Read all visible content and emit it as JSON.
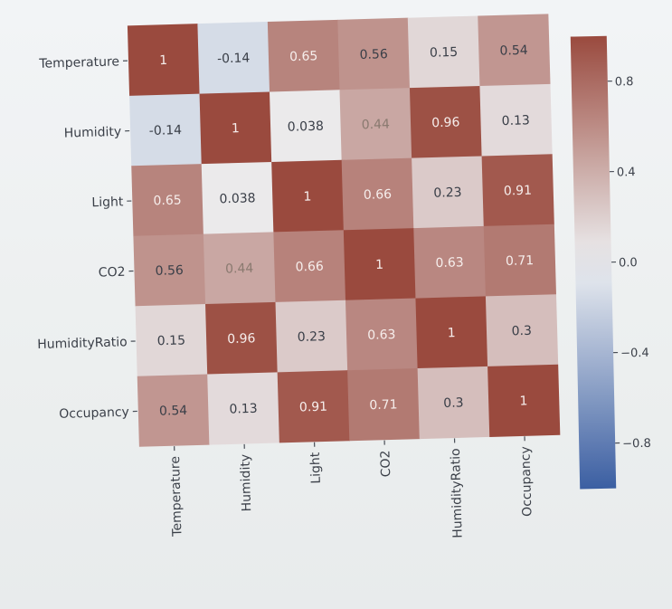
{
  "chart_data": {
    "type": "heatmap",
    "title": "",
    "rows": [
      "Temperature",
      "Humidity",
      "Light",
      "CO2",
      "HumidityRatio",
      "Occupancy"
    ],
    "columns": [
      "Temperature",
      "Humidity",
      "Light",
      "CO2",
      "HumidityRatio",
      "Occupancy"
    ],
    "values": [
      [
        1,
        -0.14,
        0.65,
        0.56,
        0.15,
        0.54
      ],
      [
        -0.14,
        1,
        0.038,
        0.44,
        0.96,
        0.13
      ],
      [
        0.65,
        0.038,
        1,
        0.66,
        0.23,
        0.91
      ],
      [
        0.56,
        0.44,
        0.66,
        1,
        0.63,
        0.71
      ],
      [
        0.15,
        0.96,
        0.23,
        0.63,
        1,
        0.3
      ],
      [
        0.54,
        0.13,
        0.91,
        0.71,
        0.3,
        1
      ]
    ],
    "cell_labels": [
      [
        "1",
        "-0.14",
        "0.65",
        "0.56",
        "0.15",
        "0.54"
      ],
      [
        "-0.14",
        "1",
        "0.038",
        "0.44",
        "0.96",
        "0.13"
      ],
      [
        "0.65",
        "0.038",
        "1",
        "0.66",
        "0.23",
        "0.91"
      ],
      [
        "0.56",
        "0.44",
        "0.66",
        "1",
        "0.63",
        "0.71"
      ],
      [
        "0.15",
        "0.96",
        "0.23",
        "0.63",
        "1",
        "0.3"
      ],
      [
        "0.54",
        "0.13",
        "0.91",
        "0.71",
        "0.3",
        "1"
      ]
    ],
    "colorbar": {
      "range": [
        -1,
        1
      ],
      "ticks": [
        0.8,
        0.4,
        0.0,
        -0.4,
        -0.8
      ],
      "tick_labels": [
        "0.8",
        "0.4",
        "0.0",
        "−0.4",
        "−0.8"
      ],
      "colormap": "diverging blue-white-red"
    },
    "colors": {
      "negative": "#3b5fa2",
      "neutral": "#eef0f2",
      "positive": "#9a4a3e"
    },
    "legend_position": "right"
  }
}
